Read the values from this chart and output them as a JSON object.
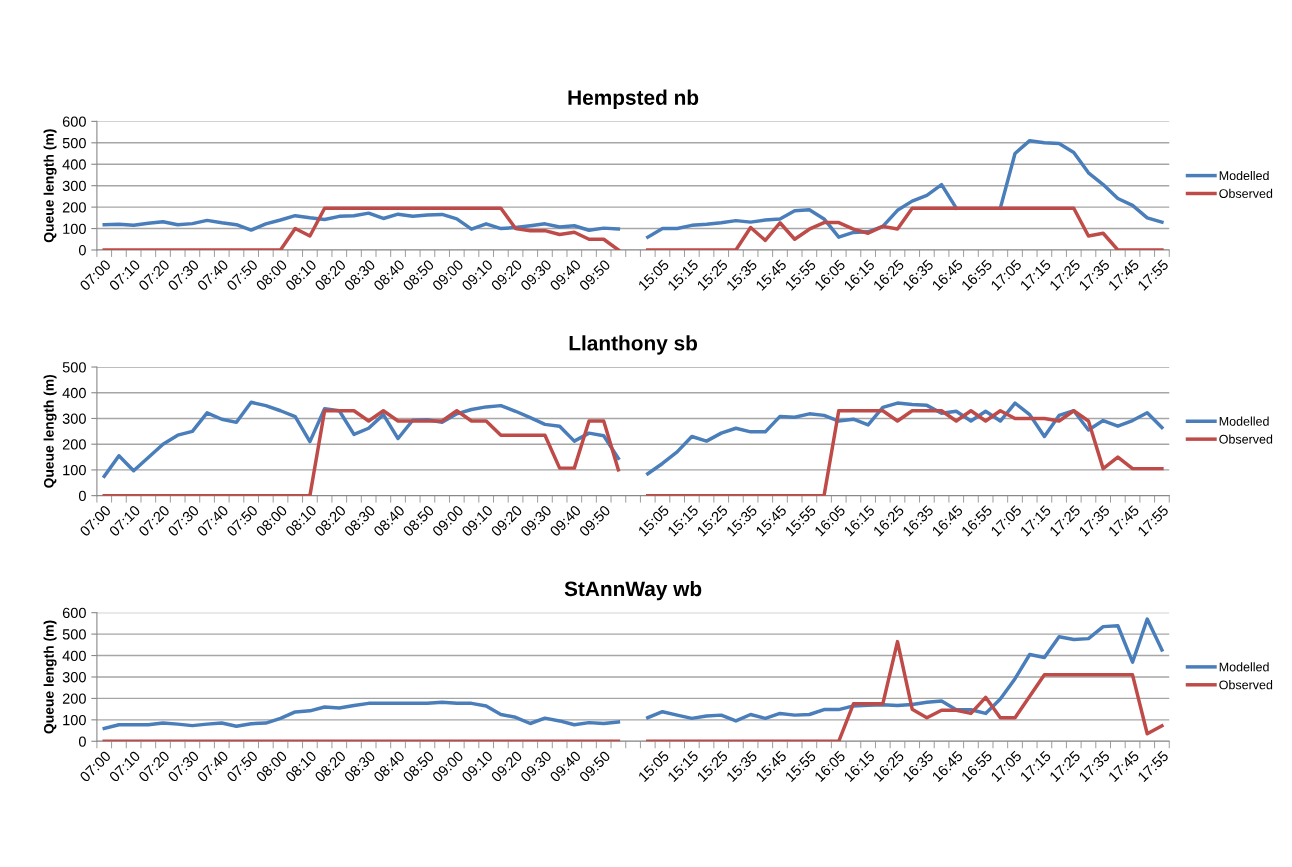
{
  "chart_data": [
    {
      "type": "line",
      "title": "Hempsted nb",
      "ylabel": "Queue length (m)",
      "ylim": [
        0,
        600
      ],
      "yticks": [
        0,
        100,
        200,
        300,
        400,
        500,
        600
      ],
      "grid": "y",
      "legend": "right",
      "marker": "none",
      "line_style": "solid",
      "categories": [
        "07:00",
        null,
        "07:10",
        null,
        "07:20",
        null,
        "07:30",
        null,
        "07:40",
        null,
        "07:50",
        null,
        "08:00",
        null,
        "08:10",
        null,
        "08:20",
        null,
        "08:30",
        null,
        "08:40",
        null,
        "08:50",
        null,
        "09:00",
        null,
        "09:10",
        null,
        "09:20",
        null,
        "09:30",
        null,
        "09:40",
        null,
        "09:50",
        null,
        null,
        null,
        "15:05",
        null,
        "15:15",
        null,
        "15:25",
        null,
        "15:35",
        null,
        "15:45",
        null,
        "15:55",
        null,
        "16:05",
        null,
        "16:15",
        null,
        "16:25",
        null,
        "16:35",
        null,
        "16:45",
        null,
        "16:55",
        null,
        "17:05",
        null,
        "17:15",
        null,
        "17:25",
        null,
        "17:35",
        null,
        "17:45",
        null,
        "17:55"
      ],
      "series": [
        {
          "name": "Modelled",
          "color": "#4a7ebb",
          "values": [
            118,
            120,
            115,
            125,
            132,
            118,
            123,
            138,
            127,
            118,
            93,
            122,
            140,
            160,
            150,
            142,
            157,
            160,
            172,
            147,
            167,
            157,
            163,
            166,
            145,
            97,
            122,
            100,
            105,
            113,
            122,
            107,
            113,
            92,
            102,
            98,
            null,
            60,
            100,
            100,
            115,
            120,
            127,
            137,
            130,
            140,
            145,
            183,
            188,
            145,
            60,
            82,
            85,
            110,
            185,
            228,
            255,
            305,
            195,
            null,
            null,
            195,
            450,
            510,
            500,
            497,
            455,
            360,
            305,
            240,
            208,
            150,
            130
          ]
        },
        {
          "name": "Observed",
          "color": "#be4b48",
          "values": [
            0,
            0,
            0,
            0,
            0,
            0,
            0,
            0,
            0,
            0,
            0,
            0,
            0,
            100,
            65,
            195,
            195,
            195,
            195,
            195,
            195,
            195,
            195,
            195,
            195,
            195,
            195,
            195,
            100,
            90,
            90,
            72,
            83,
            50,
            50,
            0,
            null,
            0,
            0,
            0,
            0,
            0,
            0,
            0,
            105,
            45,
            127,
            50,
            97,
            128,
            128,
            97,
            78,
            110,
            98,
            195,
            195,
            195,
            195,
            195,
            195,
            195,
            195,
            195,
            195,
            195,
            195,
            65,
            78,
            0,
            0,
            0,
            0
          ]
        }
      ]
    },
    {
      "type": "line",
      "title": "Llanthony sb",
      "ylabel": "Queue length (m)",
      "ylim": [
        0,
        500
      ],
      "yticks": [
        0,
        100,
        200,
        300,
        400,
        500
      ],
      "grid": "y",
      "legend": "right",
      "marker": "none",
      "line_style": "solid",
      "categories": [
        "07:00",
        null,
        "07:10",
        null,
        "07:20",
        null,
        "07:30",
        null,
        "07:40",
        null,
        "07:50",
        null,
        "08:00",
        null,
        "08:10",
        null,
        "08:20",
        null,
        "08:30",
        null,
        "08:40",
        null,
        "08:50",
        null,
        "09:00",
        null,
        "09:10",
        null,
        "09:20",
        null,
        "09:30",
        null,
        "09:40",
        null,
        "09:50",
        null,
        null,
        null,
        "15:05",
        null,
        "15:15",
        null,
        "15:25",
        null,
        "15:35",
        null,
        "15:45",
        null,
        "15:55",
        null,
        "16:05",
        null,
        "16:15",
        null,
        "16:25",
        null,
        "16:35",
        null,
        "16:45",
        null,
        "16:55",
        null,
        "17:05",
        null,
        "17:15",
        null,
        "17:25",
        null,
        "17:35",
        null,
        "17:45",
        null,
        "17:55"
      ],
      "series": [
        {
          "name": "Modelled",
          "color": "#4a7ebb",
          "values": [
            75,
            155,
            97,
            148,
            200,
            235,
            250,
            322,
            297,
            285,
            363,
            350,
            330,
            307,
            210,
            338,
            330,
            238,
            262,
            315,
            222,
            293,
            295,
            285,
            318,
            335,
            345,
            350,
            328,
            303,
            277,
            270,
            212,
            243,
            233,
            145,
            null,
            85,
            125,
            170,
            230,
            212,
            243,
            262,
            248,
            248,
            308,
            305,
            318,
            312,
            290,
            297,
            275,
            343,
            360,
            354,
            351,
            320,
            328,
            290,
            328,
            290,
            360,
            315,
            230,
            312,
            330,
            255,
            292,
            270,
            292,
            322,
            265
          ]
        },
        {
          "name": "Observed",
          "color": "#be4b48",
          "values": [
            0,
            0,
            0,
            0,
            0,
            0,
            0,
            0,
            0,
            0,
            0,
            0,
            0,
            0,
            0,
            330,
            330,
            330,
            290,
            330,
            290,
            290,
            290,
            290,
            330,
            290,
            290,
            235,
            235,
            235,
            235,
            107,
            107,
            290,
            290,
            100,
            null,
            0,
            0,
            0,
            0,
            0,
            0,
            0,
            0,
            0,
            0,
            0,
            0,
            0,
            330,
            330,
            330,
            330,
            290,
            330,
            330,
            330,
            290,
            330,
            290,
            330,
            300,
            300,
            300,
            290,
            330,
            290,
            105,
            150,
            105,
            105,
            105
          ]
        }
      ]
    },
    {
      "type": "line",
      "title": "StAnnWay wb",
      "ylabel": "Queue length (m)",
      "ylim": [
        0,
        600
      ],
      "yticks": [
        0,
        100,
        200,
        300,
        400,
        500,
        600
      ],
      "grid": "y",
      "legend": "right",
      "marker": "none",
      "line_style": "solid",
      "categories": [
        "07:00",
        null,
        "07:10",
        null,
        "07:20",
        null,
        "07:30",
        null,
        "07:40",
        null,
        "07:50",
        null,
        "08:00",
        null,
        "08:10",
        null,
        "08:20",
        null,
        "08:30",
        null,
        "08:40",
        null,
        "08:50",
        null,
        "09:00",
        null,
        "09:10",
        null,
        "09:20",
        null,
        "09:30",
        null,
        "09:40",
        null,
        "09:50",
        null,
        null,
        null,
        "15:05",
        null,
        "15:15",
        null,
        "15:25",
        null,
        "15:35",
        null,
        "15:45",
        null,
        "15:55",
        null,
        "16:05",
        null,
        "16:15",
        null,
        "16:25",
        null,
        "16:35",
        null,
        "16:45",
        null,
        "16:55",
        null,
        "17:05",
        null,
        "17:15",
        null,
        "17:25",
        null,
        "17:35",
        null,
        "17:45",
        null,
        "17:55"
      ],
      "series": [
        {
          "name": "Modelled",
          "color": "#4a7ebb",
          "values": [
            60,
            77,
            77,
            77,
            85,
            80,
            73,
            80,
            85,
            70,
            82,
            85,
            107,
            137,
            142,
            160,
            155,
            167,
            177,
            177,
            177,
            177,
            177,
            182,
            177,
            177,
            165,
            125,
            112,
            83,
            108,
            95,
            77,
            87,
            83,
            90,
            null,
            110,
            138,
            122,
            107,
            118,
            122,
            95,
            125,
            107,
            130,
            122,
            125,
            148,
            148,
            165,
            168,
            170,
            167,
            172,
            182,
            188,
            147,
            147,
            130,
            197,
            292,
            405,
            391,
            488,
            475,
            479,
            535,
            539,
            369,
            570,
            426
          ]
        },
        {
          "name": "Observed",
          "color": "#be4b48",
          "values": [
            0,
            0,
            0,
            0,
            0,
            0,
            0,
            0,
            0,
            0,
            0,
            0,
            0,
            0,
            0,
            0,
            0,
            0,
            0,
            0,
            0,
            0,
            0,
            0,
            0,
            0,
            0,
            0,
            0,
            0,
            0,
            0,
            0,
            0,
            0,
            0,
            null,
            0,
            0,
            0,
            0,
            0,
            0,
            0,
            0,
            0,
            0,
            0,
            0,
            0,
            0,
            175,
            175,
            175,
            465,
            150,
            110,
            145,
            145,
            130,
            205,
            110,
            110,
            210,
            310,
            310,
            310,
            310,
            310,
            310,
            310,
            35,
            72
          ]
        }
      ]
    }
  ]
}
